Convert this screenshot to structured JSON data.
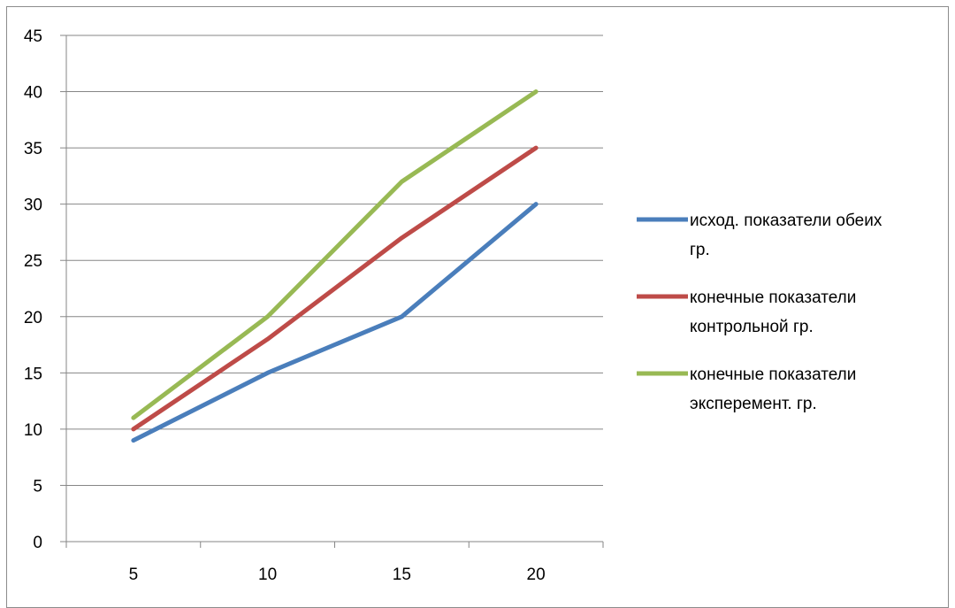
{
  "chart_data": {
    "type": "line",
    "title": "",
    "xlabel": "",
    "ylabel": "",
    "x": [
      5,
      10,
      15,
      20
    ],
    "ylim": [
      0,
      45
    ],
    "yticks": [
      0,
      5,
      10,
      15,
      20,
      25,
      30,
      35,
      40,
      45
    ],
    "grid": "horizontal",
    "legend_position": "right",
    "series": [
      {
        "name": "исход. показатели обеих гр.",
        "name_lines": [
          "исход. показатели обеих",
          "гр."
        ],
        "color": "#4a7ebb",
        "values": [
          9,
          15,
          20,
          30
        ]
      },
      {
        "name": "конечные показатели контрольной гр.",
        "name_lines": [
          "конечные показатели",
          "контрольной гр."
        ],
        "color": "#be4b48",
        "values": [
          10,
          18,
          27,
          35
        ]
      },
      {
        "name": "конечные показатели эксперемент. гр.",
        "name_lines": [
          "конечные показатели",
          "эксперемент. гр."
        ],
        "color": "#98b954",
        "values": [
          11,
          20,
          32,
          40
        ]
      }
    ]
  }
}
